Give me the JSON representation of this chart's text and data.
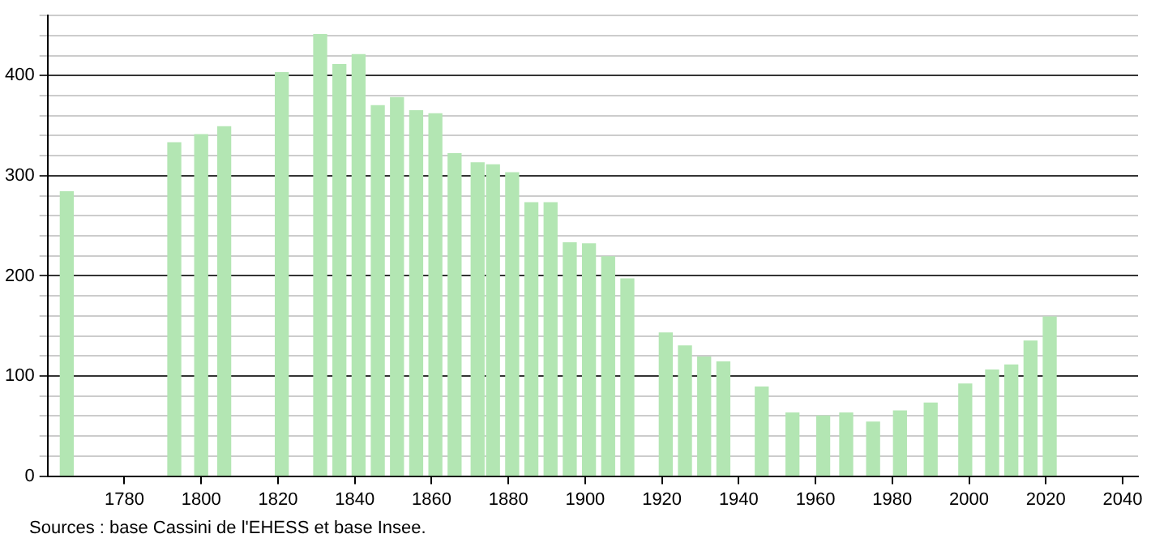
{
  "chart_data": {
    "type": "bar",
    "x": [
      1765,
      1793,
      1800,
      1806,
      1821,
      1831,
      1836,
      1841,
      1846,
      1851,
      1856,
      1861,
      1866,
      1872,
      1876,
      1881,
      1886,
      1891,
      1896,
      1901,
      1906,
      1911,
      1921,
      1926,
      1931,
      1936,
      1946,
      1954,
      1962,
      1968,
      1975,
      1982,
      1990,
      1999,
      2006,
      2011,
      2016,
      2021
    ],
    "values": [
      284,
      333,
      341,
      349,
      403,
      441,
      411,
      421,
      370,
      378,
      365,
      362,
      322,
      313,
      311,
      303,
      273,
      273,
      233,
      232,
      219,
      197,
      143,
      130,
      119,
      114,
      89,
      63,
      60,
      63,
      54,
      65,
      73,
      92,
      106,
      111,
      135,
      159
    ],
    "color": "#b3e6b3",
    "xlim": [
      1760,
      2044
    ],
    "xticks": [
      1780,
      1800,
      1820,
      1840,
      1860,
      1880,
      1900,
      1920,
      1940,
      1960,
      1980,
      2000,
      2020,
      2040
    ],
    "ylim": [
      0,
      460
    ],
    "yticks": [
      0,
      {
        "value": 20,
        "label": null
      },
      {
        "value": 40,
        "label": null
      },
      {
        "value": 60,
        "label": null
      },
      {
        "value": 80,
        "label": null
      },
      100,
      {
        "value": 120,
        "label": null
      },
      {
        "value": 140,
        "label": null
      },
      {
        "value": 160,
        "label": null
      },
      {
        "value": 180,
        "label": null
      },
      200,
      {
        "value": 220,
        "label": null
      },
      {
        "value": 240,
        "label": null
      },
      {
        "value": 260,
        "label": null
      },
      {
        "value": 280,
        "label": null
      },
      300,
      {
        "value": 320,
        "label": null
      },
      {
        "value": 340,
        "label": null
      },
      {
        "value": 360,
        "label": null
      },
      {
        "value": 380,
        "label": null
      },
      400,
      {
        "value": 420,
        "label": null
      },
      {
        "value": 440,
        "label": null
      },
      {
        "value": 460,
        "label": null
      }
    ],
    "grid": "y",
    "legend": false,
    "annotations": [
      "Sources : base Cassini de l'EHESS et base Insee."
    ]
  }
}
